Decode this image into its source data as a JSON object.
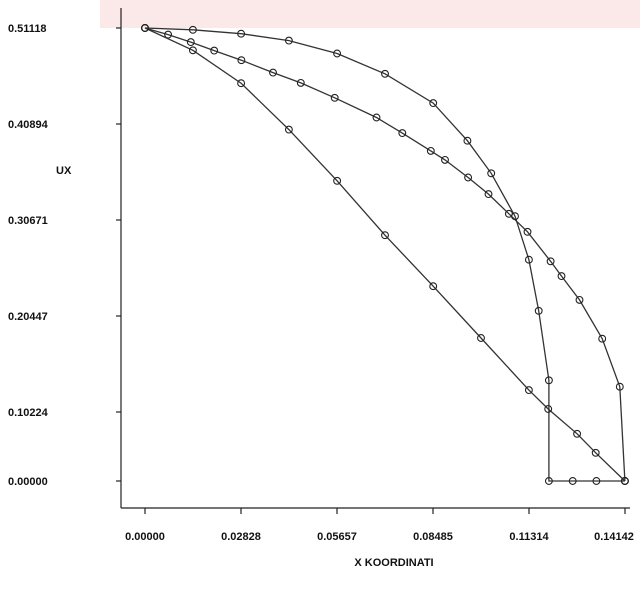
{
  "chart_data": {
    "type": "line",
    "xlabel": "X KOORDINATI",
    "ylabel": "UX",
    "x_ticks": [
      "0.00000",
      "0.02828",
      "0.05657",
      "0.08485",
      "0.11314",
      "0.14142"
    ],
    "y_ticks": [
      "0.51118",
      "0.40894",
      "0.30671",
      "0.20447",
      "0.10224",
      "0.00000"
    ],
    "xlim": [
      0.0,
      0.14142
    ],
    "ylim": [
      0.0,
      0.51118
    ],
    "grid": false,
    "series": [
      {
        "x": [
          0.0,
          0.0068,
          0.0135,
          0.0204,
          0.0284,
          0.0377,
          0.0459,
          0.0559,
          0.0682,
          0.0758,
          0.0842,
          0.0884,
          0.0952,
          0.1012,
          0.1072,
          0.1127,
          0.1195,
          0.1227,
          0.128,
          0.1347,
          0.1399,
          0.1414
        ],
        "y": [
          0.5112,
          0.5037,
          0.4953,
          0.4857,
          0.4748,
          0.4608,
          0.4492,
          0.4324,
          0.4102,
          0.3926,
          0.3725,
          0.3623,
          0.3425,
          0.3238,
          0.3015,
          0.2812,
          0.2479,
          0.2312,
          0.2044,
          0.1606,
          0.1064,
          0.0
        ],
        "marker": "circle"
      },
      {
        "x": [
          0.0,
          0.0141,
          0.0283,
          0.0424,
          0.0566,
          0.0707,
          0.0849,
          0.099,
          0.1131,
          0.1188,
          0.1273,
          0.1328,
          0.1414
        ],
        "y": [
          0.5112,
          0.486,
          0.4489,
          0.3965,
          0.3387,
          0.2774,
          0.2198,
          0.1614,
          0.1026,
          0.0812,
          0.0533,
          0.0318,
          0.0
        ],
        "marker": "circle"
      },
      {
        "x": [
          0.0,
          0.0141,
          0.0283,
          0.0424,
          0.0566,
          0.0707,
          0.0849,
          0.095,
          0.102,
          0.109,
          0.1131,
          0.116,
          0.119,
          0.119,
          0.126,
          0.133,
          0.1414
        ],
        "y": [
          0.5112,
          0.5092,
          0.5047,
          0.497,
          0.4824,
          0.4595,
          0.4264,
          0.384,
          0.3472,
          0.2988,
          0.2497,
          0.1921,
          0.1136,
          0.0,
          0.0,
          0.0,
          0.0
        ],
        "marker": "circle"
      }
    ]
  }
}
